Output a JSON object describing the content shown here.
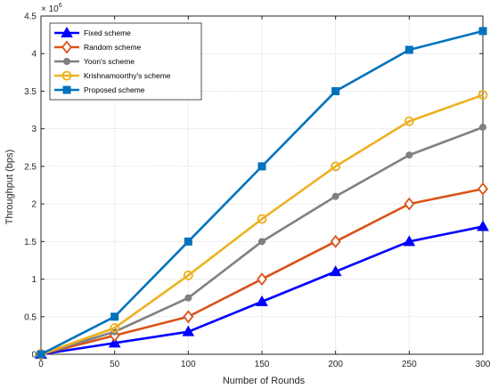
{
  "chart_data": {
    "type": "line",
    "xlabel": "Number of Rounds",
    "ylabel": "Throughput (bps)",
    "y_multiplier_label": "× 10",
    "y_multiplier_exponent": "6",
    "x": [
      0,
      50,
      100,
      150,
      200,
      250,
      300
    ],
    "xlim": [
      0,
      300
    ],
    "ylim": [
      0,
      4.5
    ],
    "x_ticks": [
      0,
      50,
      100,
      150,
      200,
      250,
      300
    ],
    "y_ticks": [
      0,
      0.5,
      1,
      1.5,
      2,
      2.5,
      3,
      3.5,
      4,
      4.5
    ],
    "grid": true,
    "legend_position": "top-left",
    "series": [
      {
        "name": "Fixed scheme",
        "color": "#0000ff",
        "marker": "triangle",
        "values": [
          0,
          0.15,
          0.3,
          0.7,
          1.1,
          1.5,
          1.7
        ]
      },
      {
        "name": "Random scheme",
        "color": "#d95319",
        "marker": "diamond",
        "values": [
          0,
          0.25,
          0.5,
          1.0,
          1.5,
          2.0,
          2.2
        ]
      },
      {
        "name": "Yoon's scheme",
        "color": "#808080",
        "marker": "circle",
        "values": [
          0,
          0.3,
          0.75,
          1.5,
          2.1,
          2.65,
          3.02
        ]
      },
      {
        "name": "Krishnamoorthy's scheme",
        "color": "#edb120",
        "marker": "open-circle",
        "values": [
          0,
          0.35,
          1.05,
          1.8,
          2.5,
          3.1,
          3.45
        ]
      },
      {
        "name": "Proposed scheme",
        "color": "#0072bd",
        "marker": "square",
        "values": [
          0,
          0.5,
          1.5,
          2.5,
          3.5,
          4.05,
          4.3
        ]
      }
    ]
  }
}
